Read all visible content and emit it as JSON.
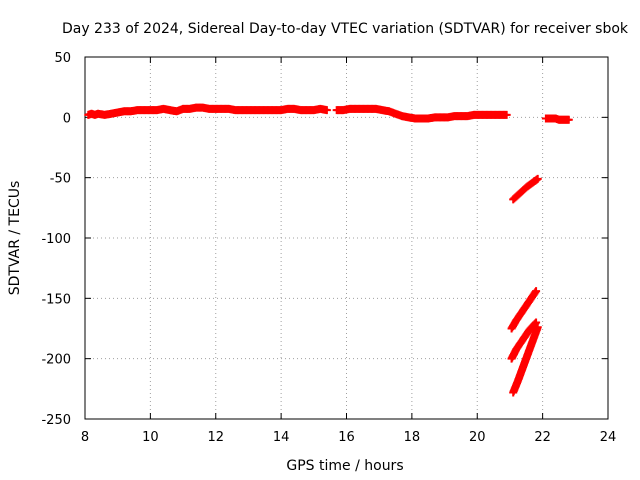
{
  "chart_data": {
    "type": "scatter",
    "title": "Day 233 of 2024, Sidereal Day-to-day VTEC variation (SDTVAR) for receiver sbok",
    "xlabel": "GPS time / hours",
    "ylabel": "SDTVAR / TECUs",
    "xlim": [
      8,
      24
    ],
    "ylim": [
      -250,
      50
    ],
    "xticks": [
      8,
      10,
      12,
      14,
      16,
      18,
      20,
      22,
      24
    ],
    "yticks": [
      50,
      0,
      -50,
      -100,
      -150,
      -200,
      -250
    ],
    "grid": true,
    "marker": "+",
    "marker_color": "#ff0000",
    "series": [
      {
        "name": "main",
        "x": [
          8.1,
          8.2,
          8.3,
          8.4,
          8.6,
          8.8,
          9.0,
          9.2,
          9.4,
          9.6,
          9.8,
          10.0,
          10.2,
          10.4,
          10.6,
          10.8,
          11.0,
          11.2,
          11.4,
          11.6,
          11.8,
          12.0,
          12.2,
          12.4,
          12.6,
          12.8,
          13.0,
          13.2,
          13.4,
          13.6,
          13.8,
          14.0,
          14.2,
          14.4,
          14.6,
          14.8,
          15.0,
          15.2,
          15.4
        ],
        "y": [
          2,
          3,
          2,
          3,
          2,
          3,
          4,
          5,
          5,
          6,
          6,
          6,
          6,
          7,
          6,
          5,
          7,
          7,
          8,
          8,
          7,
          7,
          7,
          7,
          6,
          6,
          6,
          6,
          6,
          6,
          6,
          6,
          7,
          7,
          6,
          6,
          6,
          7,
          6
        ]
      },
      {
        "name": "main-2",
        "x": [
          15.7,
          15.9,
          16.1,
          16.3,
          16.5,
          16.7,
          16.9,
          17.1,
          17.3,
          17.5,
          17.7,
          17.9,
          18.1,
          18.3,
          18.5,
          18.7,
          18.9,
          19.1,
          19.3,
          19.5,
          19.7,
          19.9,
          20.1,
          20.3,
          20.5,
          20.7,
          20.9
        ],
        "y": [
          6,
          6,
          7,
          7,
          7,
          7,
          7,
          6,
          5,
          3,
          1,
          0,
          -1,
          -1,
          -1,
          0,
          0,
          0,
          1,
          1,
          1,
          2,
          2,
          2,
          2,
          2,
          2
        ]
      },
      {
        "name": "late",
        "x": [
          22.1,
          22.2,
          22.3,
          22.4,
          22.5,
          22.6,
          22.7,
          22.8
        ],
        "y": [
          -1,
          -1,
          -1,
          -1,
          -2,
          -2,
          -2,
          -2
        ]
      },
      {
        "name": "drop-1",
        "x": [
          21.1,
          21.3,
          21.5,
          21.7,
          21.85
        ],
        "y": [
          -68,
          -63,
          -58,
          -54,
          -51
        ]
      },
      {
        "name": "drop-2",
        "x": [
          21.05,
          21.2,
          21.35,
          21.5,
          21.65,
          21.8
        ],
        "y": [
          -175,
          -168,
          -162,
          -156,
          -150,
          -144
        ]
      },
      {
        "name": "drop-3",
        "x": [
          21.05,
          21.2,
          21.4,
          21.6,
          21.8
        ],
        "y": [
          -200,
          -192,
          -184,
          -176,
          -170
        ]
      },
      {
        "name": "drop-4",
        "x": [
          21.1,
          21.25,
          21.4,
          21.55,
          21.7,
          21.85
        ],
        "y": [
          -228,
          -218,
          -207,
          -196,
          -185,
          -174
        ]
      }
    ]
  }
}
